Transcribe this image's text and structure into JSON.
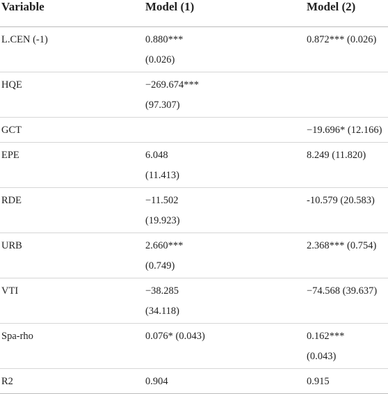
{
  "table": {
    "header": [
      "Variable",
      "Model (1)",
      "Model (2)"
    ],
    "rows": [
      [
        "L.CEN (-1)",
        [
          "0.880***",
          "(0.026)"
        ],
        [
          "0.872*** (0.026)"
        ]
      ],
      [
        "HQE",
        [
          "−269.674***",
          "(97.307)"
        ],
        []
      ],
      [
        "GCT",
        [],
        [
          "−19.696* (12.166)"
        ]
      ],
      [
        "EPE",
        [
          "6.048",
          "(11.413)"
        ],
        [
          "8.249 (11.820)"
        ]
      ],
      [
        "RDE",
        [
          "−11.502",
          "(19.923)"
        ],
        [
          "-10.579 (20.583)"
        ]
      ],
      [
        "URB",
        [
          "2.660***",
          "(0.749)"
        ],
        [
          "2.368*** (0.754)"
        ]
      ],
      [
        "VTI",
        [
          "−38.285",
          "(34.118)"
        ],
        [
          "−74.568 (39.637)"
        ]
      ],
      [
        "Spa-rho",
        [
          "0.076* (0.043)"
        ],
        [
          "0.162***",
          "(0.043)"
        ]
      ],
      [
        "R2",
        [
          "0.904"
        ],
        [
          "0.915"
        ]
      ]
    ]
  }
}
